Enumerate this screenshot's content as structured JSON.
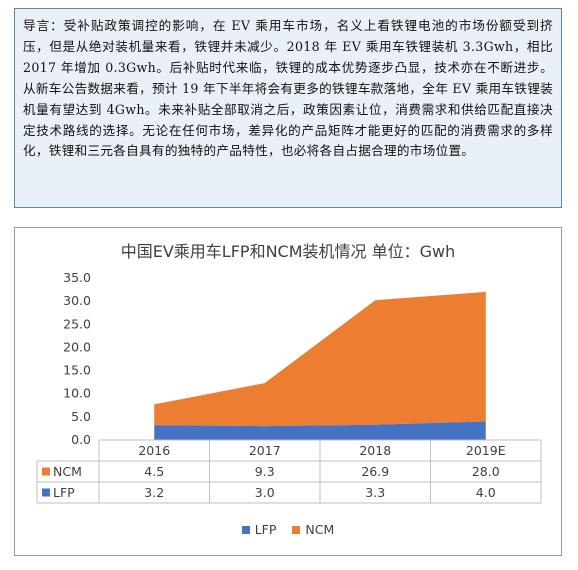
{
  "intro": {
    "text": "导言：受补贴政策调控的影响，在 EV 乘用车市场，名义上看铁锂电池的市场份额受到挤压，但是从绝对装机量来看，铁锂并未减少。2018 年 EV 乘用车铁锂装机 3.3Gwh，相比 2017 年增加 0.3Gwh。后补贴时代来临，铁锂的成本优势逐步凸显，技术亦在不断进步。从新车公告数据来看，预计 19 年下半年将会有更多的铁锂车款落地，全年 EV 乘用车铁锂装机量有望达到 4Gwh。未来补贴全部取消之后，政策因素让位，消费需求和供给匹配直接决定技术路线的选择。无论在任何市场，差异化的产品矩阵才能更好的匹配的消费需求的多样化，铁锂和三元各自具有的独特的产品特性，也必将各自占据合理的市场位置。"
  },
  "colors": {
    "ncm": "#ed7d31",
    "lfp": "#4472c4",
    "intro_bg": "#e9f0f8",
    "intro_border": "#5b84b1"
  },
  "chart_data": {
    "type": "area",
    "stacked": true,
    "title": "中国EV乘用车LFP和NCM装机情况 单位：Gwh",
    "categories": [
      "2016",
      "2017",
      "2018",
      "2019E"
    ],
    "series": [
      {
        "name": "LFP",
        "values": [
          3.2,
          3.0,
          3.3,
          4.0
        ]
      },
      {
        "name": "NCM",
        "values": [
          4.5,
          9.3,
          26.9,
          28.0
        ]
      }
    ],
    "ylim": [
      0,
      35
    ],
    "yticks": [
      0,
      5,
      10,
      15,
      20,
      25,
      30,
      35
    ],
    "ytick_labels": [
      "0.0",
      "5.0",
      "10.0",
      "15.0",
      "20.0",
      "25.0",
      "30.0",
      "35.0"
    ],
    "data_table": {
      "rows": [
        {
          "label": "NCM",
          "values": [
            "4.5",
            "9.3",
            "26.9",
            "28.0"
          ]
        },
        {
          "label": "LFP",
          "values": [
            "3.2",
            "3.0",
            "3.3",
            "4.0"
          ]
        }
      ]
    },
    "grid": false,
    "legend_position": "bottom",
    "legend": [
      "LFP",
      "NCM"
    ]
  }
}
